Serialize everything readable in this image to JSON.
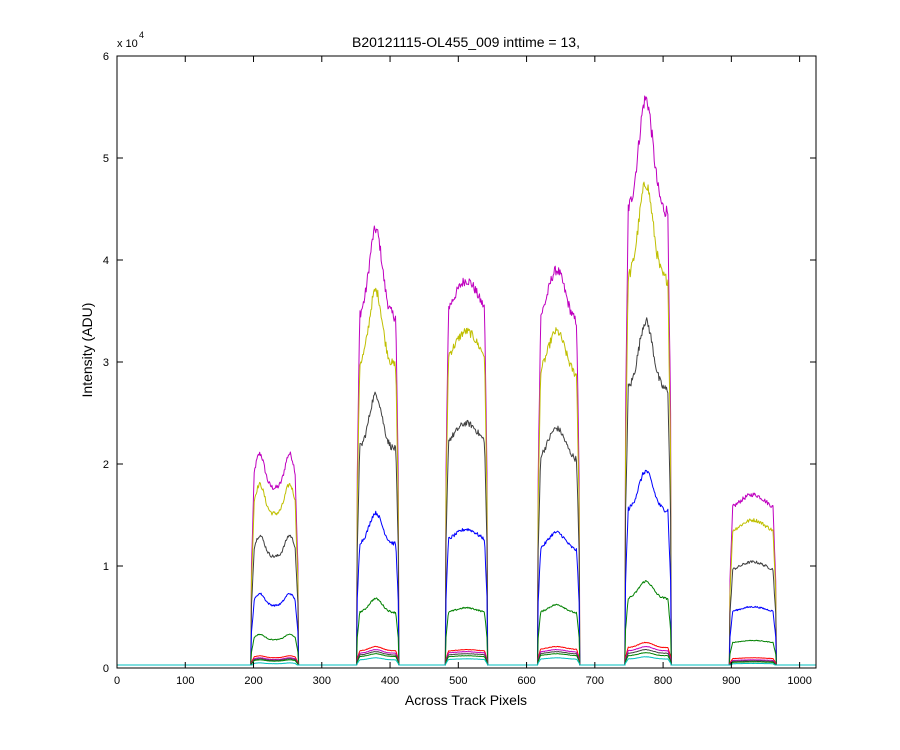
{
  "chart_data": {
    "type": "line",
    "title": "B20121115-OL455_009 inttime = 13,",
    "xlabel": "Across Track Pixels",
    "ylabel": "Intensity (ADU)",
    "xlim": [
      0,
      1024
    ],
    "ylim": [
      0,
      60000
    ],
    "grid": false,
    "legend": "none",
    "x_ticks": [
      0,
      100,
      200,
      300,
      400,
      500,
      600,
      700,
      800,
      900,
      1000
    ],
    "y_ticks": [
      0,
      1,
      2,
      3,
      4,
      5,
      6
    ],
    "y_multiplier": {
      "base": "x 10",
      "exponent": "4"
    },
    "baseline": 300,
    "spot_shapes": [
      {
        "x_start": 197,
        "x_end": 265,
        "shape": "twin"
      },
      {
        "x_start": 352,
        "x_end": 412,
        "shape": "peak"
      },
      {
        "x_start": 482,
        "x_end": 542,
        "shape": "flat"
      },
      {
        "x_start": 617,
        "x_end": 677,
        "shape": "round"
      },
      {
        "x_start": 745,
        "x_end": 811,
        "shape": "peak"
      },
      {
        "x_start": 898,
        "x_end": 965,
        "shape": "flat"
      }
    ],
    "series": [
      {
        "color": "#bf00bf",
        "spot_peaks": [
          21000,
          43000,
          38000,
          39000,
          55800,
          17000
        ]
      },
      {
        "color": "#bfbf00",
        "spot_peaks": [
          18000,
          37000,
          33000,
          33000,
          47500,
          14500
        ]
      },
      {
        "color": "#404040",
        "spot_peaks": [
          13000,
          26800,
          24000,
          23500,
          34000,
          10400
        ]
      },
      {
        "color": "#0000ff",
        "spot_peaks": [
          7300,
          15200,
          13600,
          13300,
          19300,
          6000
        ]
      },
      {
        "color": "#008000",
        "spot_peaks": [
          3300,
          6800,
          5900,
          6200,
          8500,
          2700
        ]
      },
      {
        "color": "#ff0000",
        "spot_peaks": [
          1200,
          2100,
          1800,
          2100,
          2500,
          1000
        ]
      },
      {
        "color": "#bf00bf",
        "spot_peaks": [
          1000,
          1800,
          1600,
          1800,
          2100,
          800
        ]
      },
      {
        "color": "#404040",
        "spot_peaks": [
          900,
          1600,
          1400,
          1600,
          1800,
          700
        ]
      },
      {
        "color": "#008000",
        "spot_peaks": [
          800,
          1400,
          1200,
          1400,
          1500,
          600
        ]
      },
      {
        "color": "#00bfbf",
        "spot_peaks": [
          500,
          1000,
          900,
          1000,
          1100,
          450
        ]
      }
    ]
  }
}
